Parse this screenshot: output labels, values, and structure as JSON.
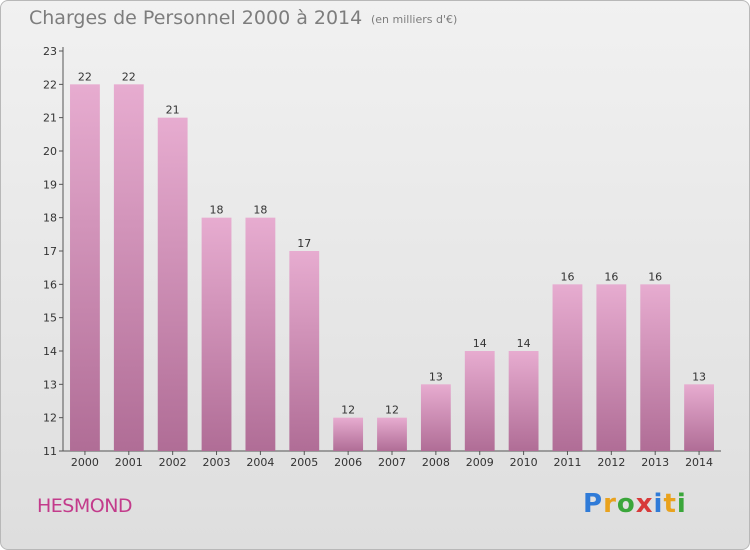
{
  "title": "Charges de Personnel 2000 à 2014",
  "unit": "(en milliers d'€)",
  "place": "HESMOND",
  "brand": {
    "letters": [
      "P",
      "r",
      "o",
      "x",
      "i",
      "t",
      "i"
    ],
    "colors": [
      "#2f7bd8",
      "#e9a21d",
      "#3aa63a",
      "#d83a3a",
      "#2f7bd8",
      "#e9a21d",
      "#3aa63a"
    ]
  },
  "chart_data": {
    "type": "bar",
    "title": "Charges de Personnel 2000 à 2014",
    "categories": [
      "2000",
      "2001",
      "2002",
      "2003",
      "2004",
      "2005",
      "2006",
      "2007",
      "2008",
      "2009",
      "2010",
      "2011",
      "2012",
      "2013",
      "2014"
    ],
    "values": [
      22,
      22,
      21,
      18,
      18,
      17,
      12,
      12,
      13,
      14,
      14,
      16,
      16,
      16,
      13
    ],
    "yticks": [
      11,
      12,
      13,
      14,
      15,
      16,
      17,
      18,
      19,
      20,
      21,
      22,
      23
    ],
    "ylim": [
      11,
      23
    ],
    "xlabel": "",
    "ylabel": "",
    "grid": false,
    "bar_color": "#d894bd"
  }
}
